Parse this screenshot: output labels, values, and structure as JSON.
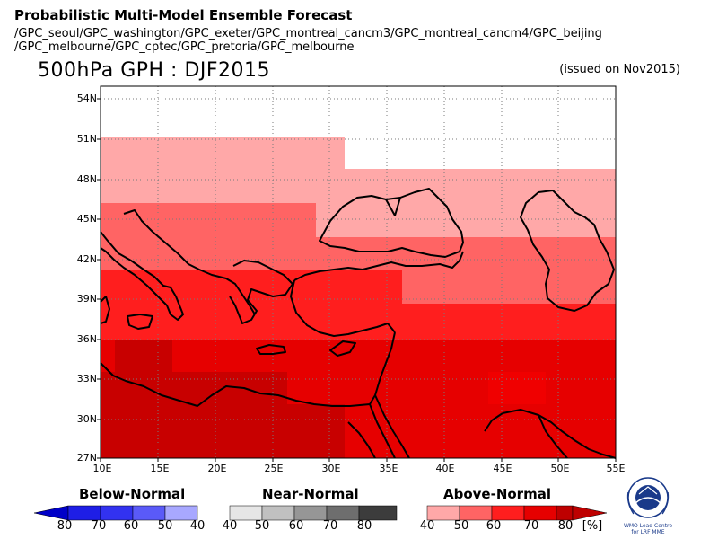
{
  "header": {
    "title": "Probabilistic Multi-Model Ensemble Forecast",
    "models_line1": "/GPC_seoul/GPC_washington/GPC_exeter/GPC_montreal_cancm3/GPC_montreal_cancm4/GPC_beijing",
    "models_line2": "/GPC_melbourne/GPC_cptec/GPC_pretoria/GPC_melbourne",
    "subtitle": "500hPa GPH : DJF2015",
    "issued": "(issued on Nov2015)"
  },
  "map": {
    "lat_labels": [
      "54N",
      "51N",
      "48N",
      "45N",
      "42N",
      "39N",
      "36N",
      "33N",
      "30N",
      "27N"
    ],
    "lon_labels": [
      "10E",
      "15E",
      "20E",
      "25E",
      "30E",
      "35E",
      "40E",
      "45E",
      "50E",
      "55E"
    ],
    "lat_range": [
      27,
      55.5
    ],
    "lon_range": [
      10,
      55
    ]
  },
  "legend": {
    "below": {
      "title": "Below-Normal",
      "values": [
        "80",
        "70",
        "60",
        "50",
        "40"
      ],
      "colors": [
        "#0000c8",
        "#1e1ee6",
        "#4848f5",
        "#7878ff",
        "#a8a8ff"
      ]
    },
    "near": {
      "title": "Near-Normal",
      "values": [
        "40",
        "50",
        "60",
        "70",
        "80"
      ],
      "colors": [
        "#e6e6e6",
        "#c0c0c0",
        "#969696",
        "#6e6e6e",
        "#3c3c3c"
      ]
    },
    "above": {
      "title": "Above-Normal",
      "values": [
        "40",
        "50",
        "60",
        "70",
        "80"
      ],
      "unit": "[%]",
      "colors": [
        "#ffa8a8",
        "#ff6464",
        "#ff1e1e",
        "#e60000",
        "#be0000"
      ]
    }
  },
  "logo": {
    "icon": "wmo-emblem-icon",
    "caption": "WMO Lead Centre for LRF MME"
  }
}
